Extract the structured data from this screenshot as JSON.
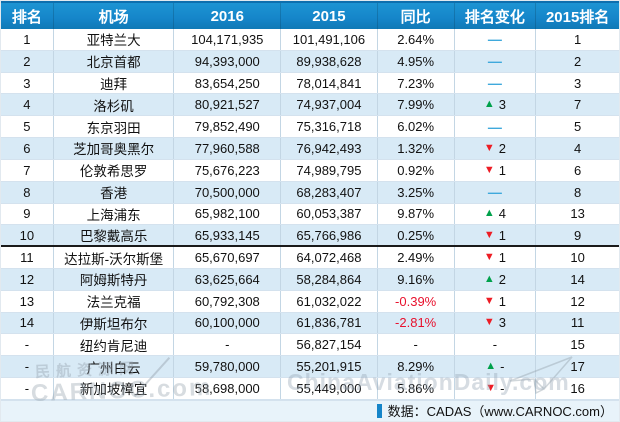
{
  "table": {
    "columns": [
      {
        "key": "rank",
        "label": "排名"
      },
      {
        "key": "airport",
        "label": "机场"
      },
      {
        "key": "y2016",
        "label": "2016"
      },
      {
        "key": "y2015",
        "label": "2015"
      },
      {
        "key": "yoy",
        "label": "同比"
      },
      {
        "key": "change",
        "label": "排名变化"
      },
      {
        "key": "rank2015",
        "label": "2015排名"
      }
    ],
    "rows": [
      {
        "rank": "1",
        "airport": "亚特兰大",
        "y2016": "104,171,935",
        "y2015": "101,491,106",
        "yoy": "2.64%",
        "change_dir": "flat",
        "change_value": "",
        "rank2015": "1"
      },
      {
        "rank": "2",
        "airport": "北京首都",
        "y2016": "94,393,000",
        "y2015": "89,938,628",
        "yoy": "4.95%",
        "change_dir": "flat",
        "change_value": "",
        "rank2015": "2"
      },
      {
        "rank": "3",
        "airport": "迪拜",
        "y2016": "83,654,250",
        "y2015": "78,014,841",
        "yoy": "7.23%",
        "change_dir": "flat",
        "change_value": "",
        "rank2015": "3"
      },
      {
        "rank": "4",
        "airport": "洛杉矶",
        "y2016": "80,921,527",
        "y2015": "74,937,004",
        "yoy": "7.99%",
        "change_dir": "up",
        "change_value": "3",
        "rank2015": "7"
      },
      {
        "rank": "5",
        "airport": "东京羽田",
        "y2016": "79,852,490",
        "y2015": "75,316,718",
        "yoy": "6.02%",
        "change_dir": "flat",
        "change_value": "",
        "rank2015": "5"
      },
      {
        "rank": "6",
        "airport": "芝加哥奥黑尔",
        "y2016": "77,960,588",
        "y2015": "76,942,493",
        "yoy": "1.32%",
        "change_dir": "down",
        "change_value": "2",
        "rank2015": "4"
      },
      {
        "rank": "7",
        "airport": "伦敦希思罗",
        "y2016": "75,676,223",
        "y2015": "74,989,795",
        "yoy": "0.92%",
        "change_dir": "down",
        "change_value": "1",
        "rank2015": "6"
      },
      {
        "rank": "8",
        "airport": "香港",
        "y2016": "70,500,000",
        "y2015": "68,283,407",
        "yoy": "3.25%",
        "change_dir": "flat",
        "change_value": "",
        "rank2015": "8"
      },
      {
        "rank": "9",
        "airport": "上海浦东",
        "y2016": "65,982,100",
        "y2015": "60,053,387",
        "yoy": "9.87%",
        "change_dir": "up",
        "change_value": "4",
        "rank2015": "13"
      },
      {
        "rank": "10",
        "airport": "巴黎戴高乐",
        "y2016": "65,933,145",
        "y2015": "65,766,986",
        "yoy": "0.25%",
        "change_dir": "down",
        "change_value": "1",
        "rank2015": "9"
      },
      {
        "rank": "11",
        "airport": "达拉斯-沃尔斯堡",
        "y2016": "65,670,697",
        "y2015": "64,072,468",
        "yoy": "2.49%",
        "change_dir": "down",
        "change_value": "1",
        "rank2015": "10"
      },
      {
        "rank": "12",
        "airport": "阿姆斯特丹",
        "y2016": "63,625,664",
        "y2015": "58,284,864",
        "yoy": "9.16%",
        "change_dir": "up",
        "change_value": "2",
        "rank2015": "14"
      },
      {
        "rank": "13",
        "airport": "法兰克福",
        "y2016": "60,792,308",
        "y2015": "61,032,022",
        "yoy": "-0.39%",
        "change_dir": "down",
        "change_value": "1",
        "rank2015": "12"
      },
      {
        "rank": "14",
        "airport": "伊斯坦布尔",
        "y2016": "60,100,000",
        "y2015": "61,836,781",
        "yoy": "-2.81%",
        "change_dir": "down",
        "change_value": "3",
        "rank2015": "11"
      },
      {
        "rank": "-",
        "airport": "纽约肯尼迪",
        "y2016": "-",
        "y2015": "56,827,154",
        "yoy": "-",
        "change_dir": "none",
        "change_value": "-",
        "rank2015": "15"
      },
      {
        "rank": "-",
        "airport": "广州白云",
        "y2016": "59,780,000",
        "y2015": "55,201,915",
        "yoy": "8.29%",
        "change_dir": "up",
        "change_value": "-",
        "rank2015": "17"
      },
      {
        "rank": "-",
        "airport": "新加坡樟宜",
        "y2016": "58,698,000",
        "y2015": "55,449,000",
        "yoy": "5.86%",
        "change_dir": "down",
        "change_value": "-",
        "rank2015": "16"
      }
    ],
    "top10_divider_after_row": 10
  },
  "footer": {
    "source_text": "数据：CADAS（www.CARNOC.com）"
  },
  "watermarks": {
    "left_line1": "民航资源网",
    "left_line2": "CARNOC.com",
    "center": "ChinaAviationDaily.com"
  },
  "glyphs": {
    "up_triangle": "▲",
    "down_triangle": "▼",
    "flat_dash": "—"
  },
  "colors": {
    "header_bg": "#1585c9",
    "row_alt": "#d8eaf6",
    "flat_dash": "#3fa9dc",
    "up_green": "#00a14b",
    "down_red": "#ed1c24",
    "negative_red": "#e8112d",
    "footer_bg": "#e8f3fa"
  }
}
